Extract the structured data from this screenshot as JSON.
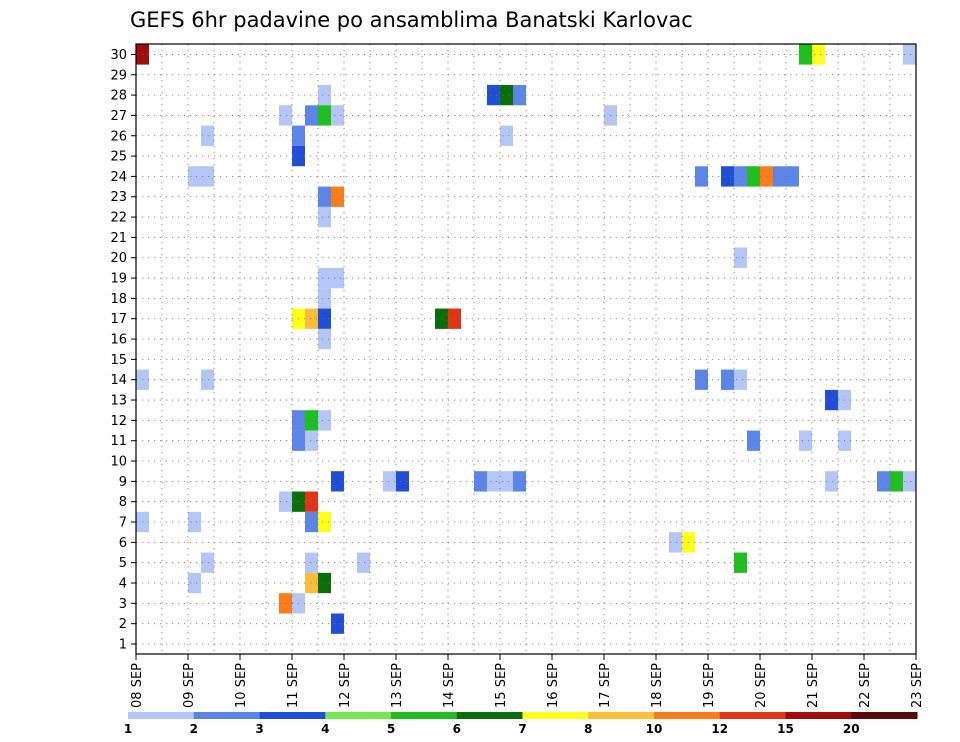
{
  "chart_data": {
    "type": "heatmap",
    "title": "GEFS 6hr padavine po ansamblima Banatski Karlovac",
    "xlabel": "",
    "ylabel": "",
    "x_tick_labels": [
      "08 SEP",
      "09 SEP",
      "10 SEP",
      "11 SEP",
      "12 SEP",
      "13 SEP",
      "14 SEP",
      "15 SEP",
      "16 SEP",
      "17 SEP",
      "18 SEP",
      "19 SEP",
      "20 SEP",
      "21 SEP",
      "22 SEP",
      "23 SEP"
    ],
    "y_tick_labels": [
      "1",
      "2",
      "3",
      "4",
      "5",
      "6",
      "7",
      "8",
      "9",
      "10",
      "11",
      "12",
      "13",
      "14",
      "15",
      "16",
      "17",
      "18",
      "19",
      "20",
      "21",
      "22",
      "23",
      "24",
      "25",
      "26",
      "27",
      "28",
      "29",
      "30"
    ],
    "x_units": "6-hour steps from 08 SEP 00Z",
    "y_units": "ensemble member",
    "grid": true,
    "legend": {
      "placement": "bottom",
      "labels": [
        "1",
        "2",
        "3",
        "4",
        "5",
        "6",
        "7",
        "8",
        "10",
        "12",
        "15",
        "20"
      ],
      "colors": [
        "#b3c6f5",
        "#5c85e8",
        "#1f4fd6",
        "#74e850",
        "#1fbf1f",
        "#0a6e0a",
        "#ffff1a",
        "#fdbc3a",
        "#fb7d1a",
        "#e03417",
        "#a00c0c",
        "#5a0a0a"
      ]
    },
    "cells": [
      {
        "x": 0.25,
        "y": 30,
        "v": 15
      },
      {
        "x": 25.75,
        "y": 30,
        "v": 5
      },
      {
        "x": 26.25,
        "y": 30,
        "v": 7
      },
      {
        "x": 29.75,
        "y": 30,
        "v": 1
      },
      {
        "x": 7.25,
        "y": 28,
        "v": 1
      },
      {
        "x": 13.75,
        "y": 28,
        "v": 3
      },
      {
        "x": 14.25,
        "y": 28,
        "v": 6
      },
      {
        "x": 14.75,
        "y": 28,
        "v": 2
      },
      {
        "x": 5.75,
        "y": 27,
        "v": 1
      },
      {
        "x": 6.75,
        "y": 27,
        "v": 2
      },
      {
        "x": 7.25,
        "y": 27,
        "v": 5
      },
      {
        "x": 7.75,
        "y": 27,
        "v": 1
      },
      {
        "x": 18.25,
        "y": 27,
        "v": 1
      },
      {
        "x": 2.75,
        "y": 26,
        "v": 1
      },
      {
        "x": 6.25,
        "y": 26,
        "v": 2
      },
      {
        "x": 14.25,
        "y": 26,
        "v": 1
      },
      {
        "x": 6.25,
        "y": 25,
        "v": 3
      },
      {
        "x": 2.25,
        "y": 24,
        "v": 1
      },
      {
        "x": 2.75,
        "y": 24,
        "v": 1
      },
      {
        "x": 21.75,
        "y": 24,
        "v": 2
      },
      {
        "x": 22.75,
        "y": 24,
        "v": 3
      },
      {
        "x": 23.25,
        "y": 24,
        "v": 2
      },
      {
        "x": 23.75,
        "y": 24,
        "v": 5
      },
      {
        "x": 24.25,
        "y": 24,
        "v": 10
      },
      {
        "x": 24.75,
        "y": 24,
        "v": 2
      },
      {
        "x": 25.25,
        "y": 24,
        "v": 2
      },
      {
        "x": 7.25,
        "y": 23,
        "v": 2
      },
      {
        "x": 7.75,
        "y": 23,
        "v": 10
      },
      {
        "x": 7.25,
        "y": 22,
        "v": 1
      },
      {
        "x": 23.25,
        "y": 20,
        "v": 1
      },
      {
        "x": 7.25,
        "y": 19,
        "v": 1
      },
      {
        "x": 7.75,
        "y": 19,
        "v": 1
      },
      {
        "x": 7.25,
        "y": 18,
        "v": 1
      },
      {
        "x": 6.25,
        "y": 17,
        "v": 7
      },
      {
        "x": 6.75,
        "y": 17,
        "v": 8
      },
      {
        "x": 7.25,
        "y": 17,
        "v": 3
      },
      {
        "x": 11.75,
        "y": 17,
        "v": 6
      },
      {
        "x": 12.25,
        "y": 17,
        "v": 12
      },
      {
        "x": 7.25,
        "y": 16,
        "v": 1
      },
      {
        "x": 0.25,
        "y": 14,
        "v": 1
      },
      {
        "x": 2.75,
        "y": 14,
        "v": 1
      },
      {
        "x": 21.75,
        "y": 14,
        "v": 2
      },
      {
        "x": 22.75,
        "y": 14,
        "v": 2
      },
      {
        "x": 23.25,
        "y": 14,
        "v": 1
      },
      {
        "x": 26.75,
        "y": 13,
        "v": 3
      },
      {
        "x": 27.25,
        "y": 13,
        "v": 1
      },
      {
        "x": 6.25,
        "y": 12,
        "v": 2
      },
      {
        "x": 6.75,
        "y": 12,
        "v": 5
      },
      {
        "x": 7.25,
        "y": 12,
        "v": 1
      },
      {
        "x": 6.25,
        "y": 11,
        "v": 2
      },
      {
        "x": 6.75,
        "y": 11,
        "v": 1
      },
      {
        "x": 23.75,
        "y": 11,
        "v": 2
      },
      {
        "x": 25.75,
        "y": 11,
        "v": 1
      },
      {
        "x": 27.25,
        "y": 11,
        "v": 1
      },
      {
        "x": 7.75,
        "y": 9,
        "v": 3
      },
      {
        "x": 9.75,
        "y": 9,
        "v": 1
      },
      {
        "x": 10.25,
        "y": 9,
        "v": 3
      },
      {
        "x": 13.25,
        "y": 9,
        "v": 2
      },
      {
        "x": 13.75,
        "y": 9,
        "v": 1
      },
      {
        "x": 14.25,
        "y": 9,
        "v": 1
      },
      {
        "x": 14.75,
        "y": 9,
        "v": 2
      },
      {
        "x": 26.75,
        "y": 9,
        "v": 1
      },
      {
        "x": 28.75,
        "y": 9,
        "v": 2
      },
      {
        "x": 29.25,
        "y": 9,
        "v": 5
      },
      {
        "x": 29.75,
        "y": 9,
        "v": 1
      },
      {
        "x": 5.75,
        "y": 8,
        "v": 1
      },
      {
        "x": 6.25,
        "y": 8,
        "v": 6
      },
      {
        "x": 6.75,
        "y": 8,
        "v": 12
      },
      {
        "x": 0.25,
        "y": 7,
        "v": 1
      },
      {
        "x": 2.25,
        "y": 7,
        "v": 1
      },
      {
        "x": 6.75,
        "y": 7,
        "v": 2
      },
      {
        "x": 7.25,
        "y": 7,
        "v": 7
      },
      {
        "x": 20.75,
        "y": 6,
        "v": 1
      },
      {
        "x": 21.25,
        "y": 6,
        "v": 7
      },
      {
        "x": 2.75,
        "y": 5,
        "v": 1
      },
      {
        "x": 6.75,
        "y": 5,
        "v": 1
      },
      {
        "x": 8.75,
        "y": 5,
        "v": 1
      },
      {
        "x": 23.25,
        "y": 5,
        "v": 5
      },
      {
        "x": 2.25,
        "y": 4,
        "v": 1
      },
      {
        "x": 6.75,
        "y": 4,
        "v": 8
      },
      {
        "x": 7.25,
        "y": 4,
        "v": 6
      },
      {
        "x": 5.75,
        "y": 3,
        "v": 10
      },
      {
        "x": 6.25,
        "y": 3,
        "v": 1
      },
      {
        "x": 7.75,
        "y": 2,
        "v": 3
      }
    ]
  }
}
